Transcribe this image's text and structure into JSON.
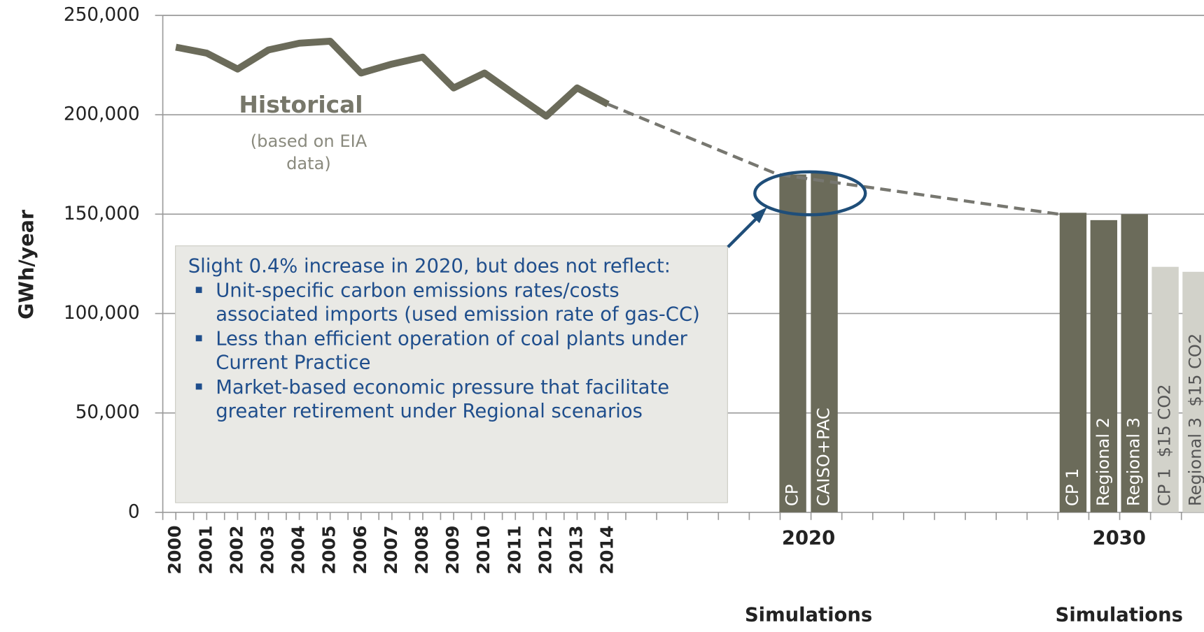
{
  "chart_data": {
    "type": "line",
    "y_label": "GWh/year",
    "ylim": [
      0,
      250000
    ],
    "yticks": [
      {
        "value": 0,
        "label": "0"
      },
      {
        "value": 50000,
        "label": "50,000"
      },
      {
        "value": 100000,
        "label": "100,000"
      },
      {
        "value": 150000,
        "label": "150,000"
      },
      {
        "value": 200000,
        "label": "200,000"
      },
      {
        "value": 250000,
        "label": "250,000"
      }
    ],
    "grid": true,
    "x": [
      2000,
      2001,
      2002,
      2003,
      2004,
      2005,
      2006,
      2007,
      2008,
      2009,
      2010,
      2011,
      2012,
      2013,
      2014
    ],
    "xtick_labels": [
      "2000",
      "2001",
      "2002",
      "2003",
      "2004",
      "2005",
      "2006",
      "2007",
      "2008",
      "2009",
      "2010",
      "2011",
      "2012",
      "2013",
      "2014"
    ],
    "series": [
      {
        "color": "#6b6b5a",
        "values": [
          234000,
          231000,
          223000,
          232600,
          236000,
          237000,
          221000,
          225500,
          229000,
          213500,
          221000,
          210000,
          199300,
          213500,
          205300
        ]
      }
    ],
    "projection": {
      "color": "#777770",
      "x": [
        2014,
        2019.5,
        2028.6
      ],
      "values": [
        205300,
        170000,
        150000
      ]
    },
    "bar_groups": [
      {
        "label": "2020",
        "sublabel": "Simulations",
        "bars": [
          {
            "name": "CP",
            "value": 170000,
            "color": "#6b6b5a"
          },
          {
            "name": "CAISO+PAC",
            "value": 170700,
            "color": "#6b6b5a"
          }
        ]
      },
      {
        "label": "2030",
        "sublabel": "Simulations",
        "bars": [
          {
            "name": "CP 1",
            "value": 150700,
            "color": "#6b6b5a"
          },
          {
            "name": "Regional 2",
            "value": 147000,
            "color": "#6b6b5a"
          },
          {
            "name": "Regional 3",
            "value": 150000,
            "color": "#6b6b5a"
          },
          {
            "name": "CP 1  $15 CO2",
            "value": 123500,
            "color": "#d2d2ca"
          },
          {
            "name": "Regional 3  $15 CO2",
            "value": 121000,
            "color": "#d2d2ca"
          }
        ]
      }
    ],
    "annotations": {
      "historical": "Historical",
      "historical_note": [
        "(based on EIA",
        "data)"
      ],
      "callout_intro": "Slight 0.4% increase in 2020, but does not reflect:",
      "callout_bullets": [
        "Unit-specific carbon emissions rates/costs associated imports (used emission rate of gas-CC)",
        "Less than efficient operation of coal plants under Current Practice",
        "Market-based economic pressure that facilitate greater retirement under Regional scenarios"
      ]
    }
  }
}
